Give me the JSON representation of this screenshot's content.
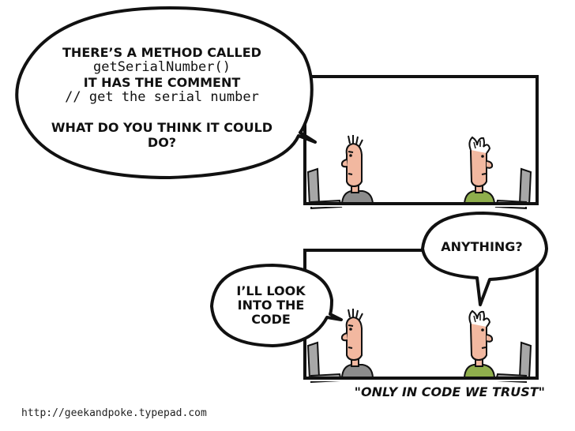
{
  "panel_1": {
    "speech_bubble": {
      "line_1": "THERE’S A METHOD CALLED",
      "line_2": "getSerialNumber()",
      "line_3": "IT HAS THE COMMENT",
      "line_4": "// get the serial number",
      "line_5": "WHAT DO YOU THINK IT COULD",
      "line_6": "DO?"
    }
  },
  "panel_2": {
    "speech_bubble_right": {
      "text": "ANYTHING?"
    },
    "speech_bubble_left": {
      "line_1": "I’LL LOOK",
      "line_2": "INTO THE",
      "line_3": "CODE"
    }
  },
  "caption": "\"ONLY IN CODE WE TRUST\"",
  "credit_url": "http://geekandpoke.typepad.com",
  "colors": {
    "skin": "#f2b8a0",
    "left_shirt": "#8c8c8c",
    "right_shirt": "#8fae4c",
    "monitor": "#a7a7a7",
    "ink": "#111111"
  },
  "icons": {
    "left_character": "developer-with-spiky-hair",
    "right_character": "developer-with-messy-hair",
    "monitors": "computer-monitor-and-keyboard"
  }
}
